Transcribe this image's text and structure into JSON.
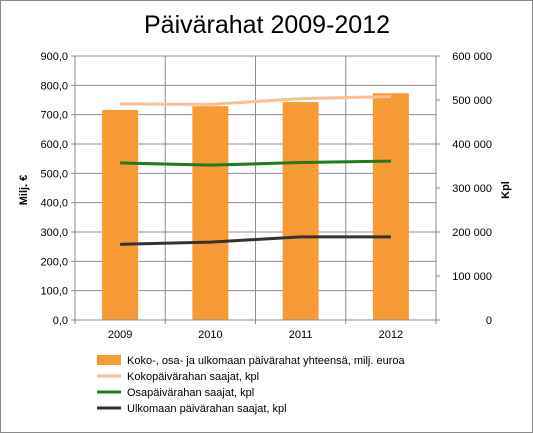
{
  "chart_data": {
    "type": "bar+line",
    "title": "Päivärahat 2009-2012",
    "categories": [
      "2009",
      "2010",
      "2011",
      "2012"
    ],
    "y_left": {
      "label": "Milj. €",
      "ylim": [
        0,
        900
      ],
      "ticks": [
        "0,0",
        "100,0",
        "200,0",
        "300,0",
        "400,0",
        "500,0",
        "600,0",
        "700,0",
        "800,0",
        "900,0"
      ]
    },
    "y_right": {
      "label": "Kpl",
      "ylim": [
        0,
        600000
      ],
      "ticks": [
        "0",
        "100 000",
        "200 000",
        "300 000",
        "400 000",
        "500 000",
        "600 000"
      ]
    },
    "grid": true,
    "legend_position": "bottom",
    "series": [
      {
        "name": "Koko-, osa- ja ulkomaan päivärahat yhteensä, milj. euroa",
        "type": "bar",
        "axis": "left",
        "color": "#f79a35",
        "values": [
          716,
          729,
          743,
          773
        ]
      },
      {
        "name": "Kokopäivärahan saajat, kpl",
        "type": "line",
        "axis": "right",
        "color": "#fac08f",
        "values": [
          491000,
          490000,
          503000,
          508000
        ]
      },
      {
        "name": "Osapäivärahan saajat, kpl",
        "type": "line",
        "axis": "right",
        "color": "#1e7b1e",
        "values": [
          357000,
          352000,
          358000,
          361000
        ]
      },
      {
        "name": "Ulkomaan päivärahan saajat, kpl",
        "type": "line",
        "axis": "right",
        "color": "#333333",
        "values": [
          172000,
          177000,
          189000,
          189000
        ]
      }
    ]
  }
}
